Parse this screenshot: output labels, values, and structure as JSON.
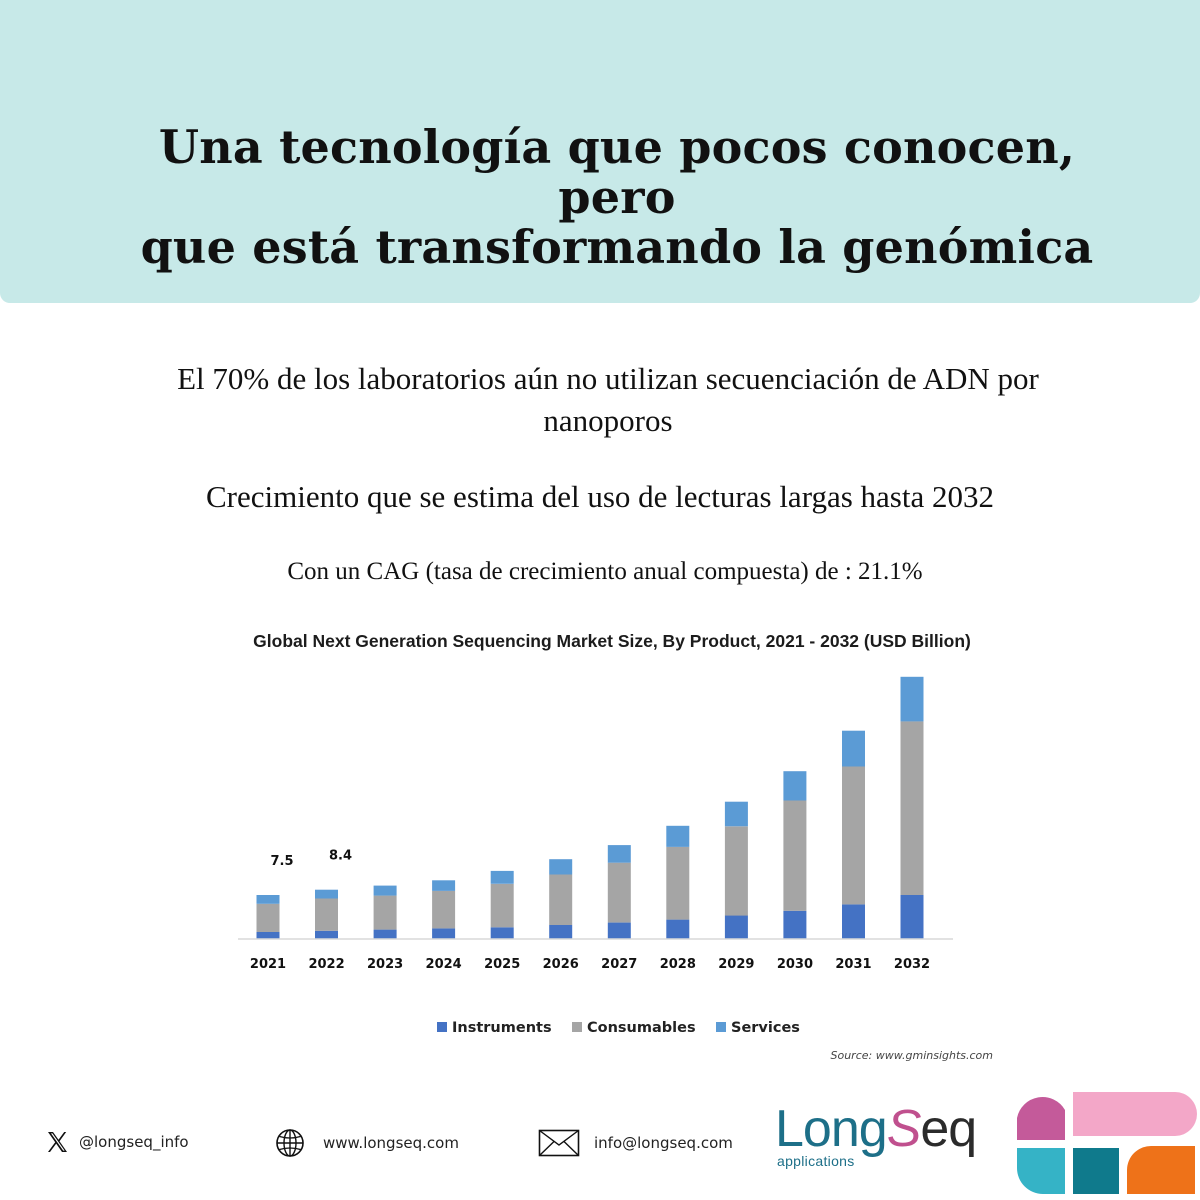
{
  "header": {
    "title_line1": "Una tecnología que pocos conocen, pero",
    "title_line2": "que está transformando la genómica"
  },
  "body": {
    "stat_line1": "El 70% de los laboratorios aún no utilizan secuenciación de ADN por",
    "stat_line2": "nanoporos",
    "growth_text": "Crecimiento que se estima del uso de lecturas largas hasta 2032",
    "cag_text": "Con un CAG (tasa de crecimiento anual compuesta) de :  21.1%"
  },
  "chart_data": {
    "type": "bar",
    "stacked": true,
    "title": "Global Next Generation Sequencing Market Size, By Product, 2021 - 2032 (USD Billion)",
    "xlabel": "",
    "ylabel": "",
    "ylim": [
      0,
      45
    ],
    "categories": [
      "2021",
      "2022",
      "2023",
      "2024",
      "2025",
      "2026",
      "2027",
      "2028",
      "2029",
      "2030",
      "2031",
      "2032"
    ],
    "series": [
      {
        "name": "Instruments",
        "color": "#4472c4",
        "values": [
          1.2,
          1.4,
          1.6,
          1.8,
          2.0,
          2.4,
          2.8,
          3.3,
          4.0,
          4.8,
          5.9,
          7.5
        ]
      },
      {
        "name": "Consumables",
        "color": "#a5a5a5",
        "values": [
          4.8,
          5.5,
          5.8,
          6.4,
          7.4,
          8.6,
          10.2,
          12.4,
          15.2,
          18.8,
          23.5,
          29.6
        ]
      },
      {
        "name": "Services",
        "color": "#5b9bd5",
        "values": [
          1.5,
          1.5,
          1.7,
          1.8,
          2.2,
          2.6,
          3.0,
          3.6,
          4.2,
          5.0,
          6.1,
          7.6
        ]
      }
    ],
    "data_labels": [
      {
        "category": "2021",
        "text": "7.5"
      },
      {
        "category": "2022",
        "text": "8.4"
      }
    ],
    "legend_position": "bottom",
    "source": "Source: www.gminsights.com"
  },
  "footer": {
    "twitter_handle": "@longseq_info",
    "website": "www.longseq.com",
    "email": "info@longseq.com",
    "logo_word_part1": "Long",
    "logo_word_s": "S",
    "logo_word_part2": "eq",
    "logo_subtitle": "applications",
    "icons": [
      "x-logo-icon",
      "globe-icon",
      "mail-icon"
    ]
  }
}
